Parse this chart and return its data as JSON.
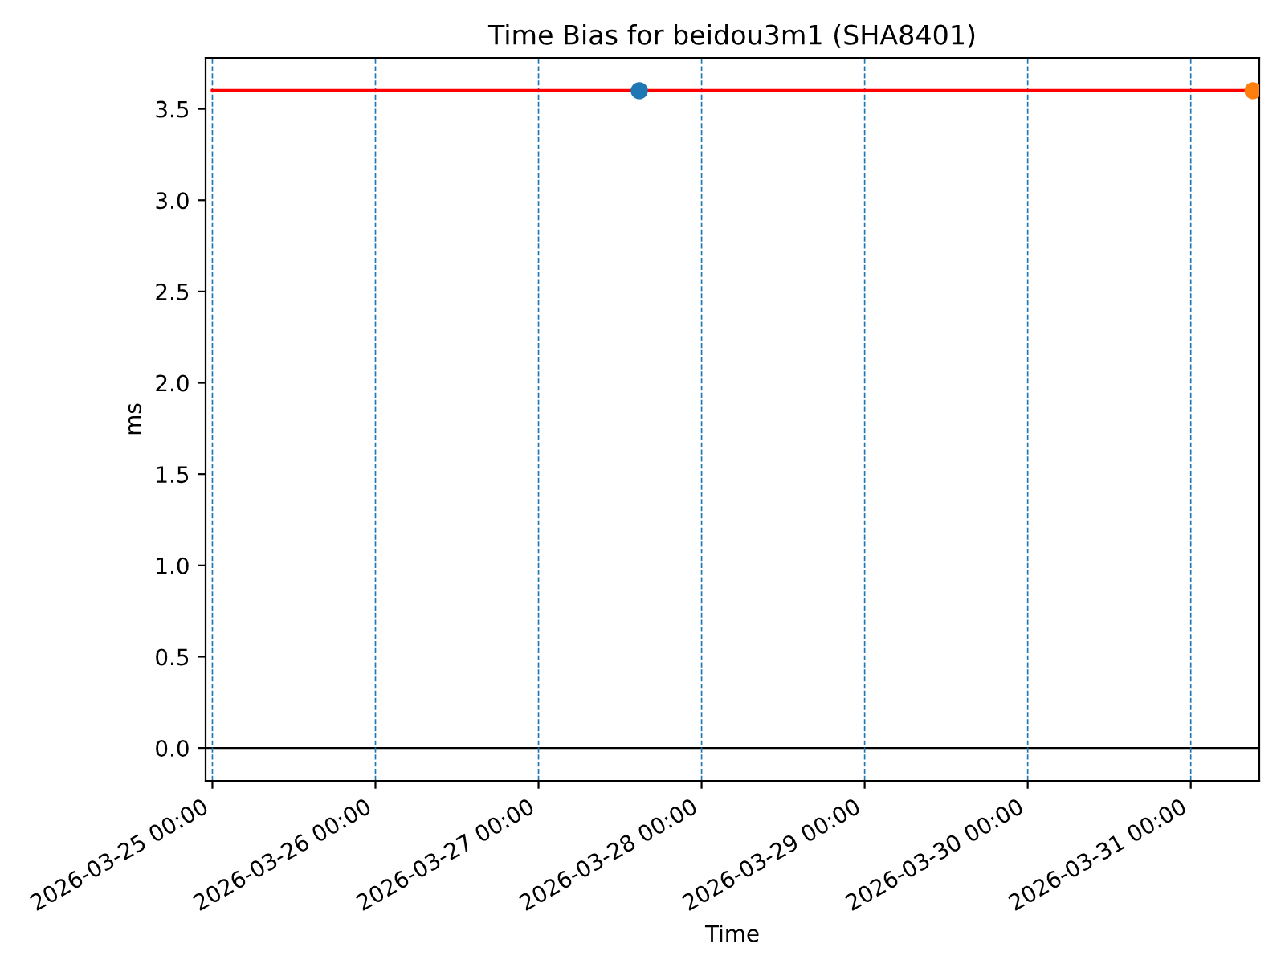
{
  "chart_data": {
    "type": "scatter",
    "title": "Time Bias for beidou3m1 (SHA8401)",
    "xlabel": "Time",
    "ylabel": "ms",
    "series": [
      {
        "type": "line",
        "marker": "none",
        "color": "#ff0000",
        "x": [
          "2026-03-25T00:00",
          "2026-03-31T10:05"
        ],
        "values": [
          3.6,
          3.6
        ]
      },
      {
        "color": "#1f77b4",
        "marker": "circle",
        "x": [
          "2026-03-27T14:50"
        ],
        "values": [
          3.6
        ]
      },
      {
        "color": "#ff7f0e",
        "marker": "circle",
        "x": [
          "2026-03-31T09:10"
        ],
        "values": [
          3.6
        ]
      }
    ],
    "xlim": [
      "2026-03-24T23:00",
      "2026-03-31T10:05"
    ],
    "xticks": [
      {
        "value": "2026-03-25",
        "label": "2026-03-25 00:00"
      },
      {
        "value": "2026-03-26",
        "label": "2026-03-26 00:00"
      },
      {
        "value": "2026-03-27",
        "label": "2026-03-27 00:00"
      },
      {
        "value": "2026-03-28",
        "label": "2026-03-28 00:00"
      },
      {
        "value": "2026-03-29",
        "label": "2026-03-29 00:00"
      },
      {
        "value": "2026-03-30",
        "label": "2026-03-30 00:00"
      },
      {
        "value": "2026-03-31",
        "label": "2026-03-31 00:00"
      }
    ],
    "ylim": [
      -0.18,
      3.78
    ],
    "yticks": [
      {
        "value": 0,
        "label": "0.0"
      },
      0.5,
      {
        "value": 1,
        "label": "1.0"
      },
      1.5,
      {
        "value": 2,
        "label": "2.0"
      },
      2.5,
      {
        "value": 3,
        "label": "3.0"
      },
      3.5
    ],
    "ref_lines": [
      {
        "axis": "y",
        "value": 0,
        "color": "#000000",
        "line_style": "solid"
      },
      {
        "axis": "x",
        "value": "2026-03-25",
        "color": "#1f77b4",
        "line_style": "dashed"
      },
      {
        "axis": "x",
        "value": "2026-03-26",
        "color": "#1f77b4",
        "line_style": "dashed"
      },
      {
        "axis": "x",
        "value": "2026-03-27",
        "color": "#1f77b4",
        "line_style": "dashed"
      },
      {
        "axis": "x",
        "value": "2026-03-28",
        "color": "#1f77b4",
        "line_style": "dashed"
      },
      {
        "axis": "x",
        "value": "2026-03-29",
        "color": "#1f77b4",
        "line_style": "dashed"
      },
      {
        "axis": "x",
        "value": "2026-03-30",
        "color": "#1f77b4",
        "line_style": "dashed"
      },
      {
        "axis": "x",
        "value": "2026-03-31",
        "color": "#1f77b4",
        "line_style": "dashed"
      }
    ]
  }
}
